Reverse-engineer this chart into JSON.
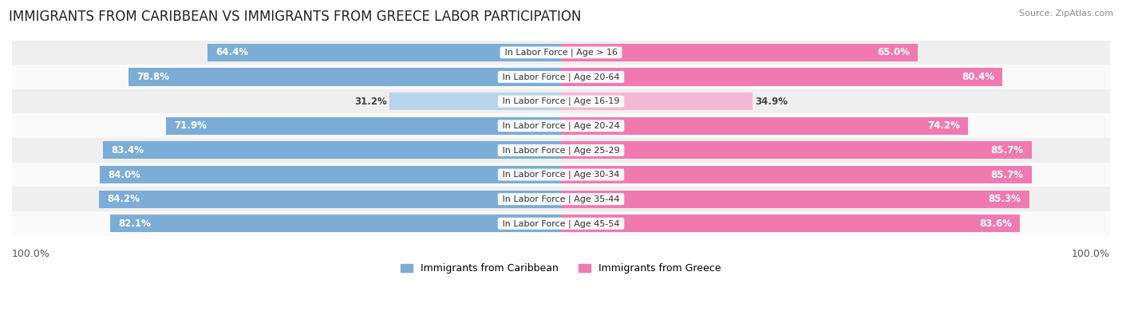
{
  "title": "IMMIGRANTS FROM CARIBBEAN VS IMMIGRANTS FROM GREECE LABOR PARTICIPATION",
  "source": "Source: ZipAtlas.com",
  "categories": [
    "In Labor Force | Age > 16",
    "In Labor Force | Age 20-64",
    "In Labor Force | Age 16-19",
    "In Labor Force | Age 20-24",
    "In Labor Force | Age 25-29",
    "In Labor Force | Age 30-34",
    "In Labor Force | Age 35-44",
    "In Labor Force | Age 45-54"
  ],
  "caribbean_values": [
    64.4,
    78.8,
    31.2,
    71.9,
    83.4,
    84.0,
    84.2,
    82.1
  ],
  "greece_values": [
    65.0,
    80.4,
    34.9,
    74.2,
    85.7,
    85.7,
    85.3,
    83.6
  ],
  "caribbean_color": "#7badd6",
  "caribbean_color_light": "#b8d4ea",
  "greece_color": "#f07ab0",
  "greece_color_light": "#f5b8d4",
  "row_bg_colors": [
    "#efefef",
    "#fafafa"
  ],
  "max_value": 100.0,
  "legend_caribbean": "Immigrants from Caribbean",
  "legend_greece": "Immigrants from Greece",
  "title_fontsize": 12,
  "bar_label_fontsize": 8.5,
  "category_fontsize": 8,
  "source_fontsize": 8,
  "figsize": [
    14.06,
    3.95
  ]
}
